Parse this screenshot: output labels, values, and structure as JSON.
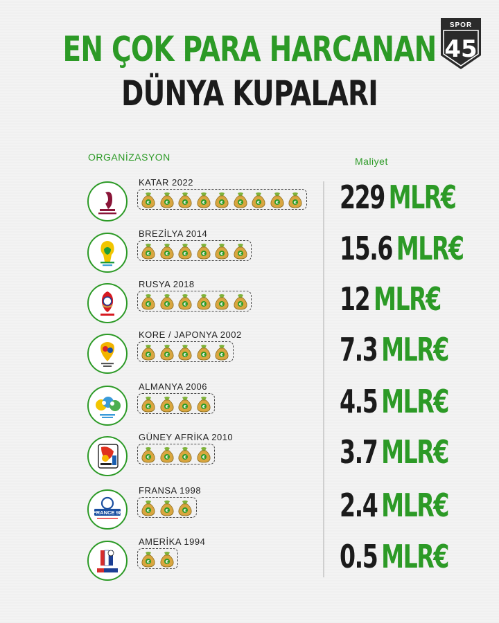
{
  "title_line1": "EN ÇOK PARA HARCANAN",
  "title_line2": "DÜNYA KUPALARI",
  "brand": {
    "top": "SPOR",
    "mark": "45"
  },
  "column_headers": {
    "organization": "ORGANİZASYON",
    "cost": "Maliyet"
  },
  "chart_data": {
    "type": "bar",
    "categories": [
      "KATAR 2022",
      "BREZİLYA 2014",
      "RUSYA 2018",
      "KORE / JAPONYA 2002",
      "ALMANYA 2006",
      "GÜNEY AFRİKA 2010",
      "FRANSA 1998",
      "AMERİKA 1994"
    ],
    "values": [
      229,
      15.6,
      12,
      7.3,
      4.5,
      3.7,
      2.4,
      0.5
    ],
    "value_labels": [
      "229",
      "15.6",
      "12",
      "7.3",
      "4.5",
      "3.7",
      "2.4",
      "0.5"
    ],
    "unit": "MLR€",
    "bag_counts": [
      9,
      6,
      6,
      5,
      4,
      4,
      3,
      2
    ],
    "colors": {
      "accent": "#2c9a26",
      "text": "#1b1b1b",
      "bag": "#d9a63f"
    }
  },
  "rows": [
    {
      "name": "KATAR 2022",
      "value": "229",
      "unit": "MLR€"
    },
    {
      "name": "BREZİLYA 2014",
      "value": "15.6",
      "unit": "MLR€"
    },
    {
      "name": "RUSYA 2018",
      "value": "12",
      "unit": "MLR€"
    },
    {
      "name": "KORE / JAPONYA 2002",
      "value": "7.3",
      "unit": "MLR€"
    },
    {
      "name": "ALMANYA 2006",
      "value": "4.5",
      "unit": "MLR€"
    },
    {
      "name": "GÜNEY AFRİKA 2010",
      "value": "3.7",
      "unit": "MLR€"
    },
    {
      "name": "FRANSA 1998",
      "value": "2.4",
      "unit": "MLR€"
    },
    {
      "name": "AMERİKA 1994",
      "value": "0.5",
      "unit": "MLR€"
    }
  ],
  "emblem_icons": [
    "qatar-2022-emblem-icon",
    "brazil-2014-emblem-icon",
    "russia-2018-emblem-icon",
    "korea-japan-2002-emblem-icon",
    "germany-2006-emblem-icon",
    "south-africa-2010-emblem-icon",
    "france-1998-emblem-icon",
    "usa-1994-emblem-icon"
  ],
  "bag_icon": "money-bag-euro-icon"
}
